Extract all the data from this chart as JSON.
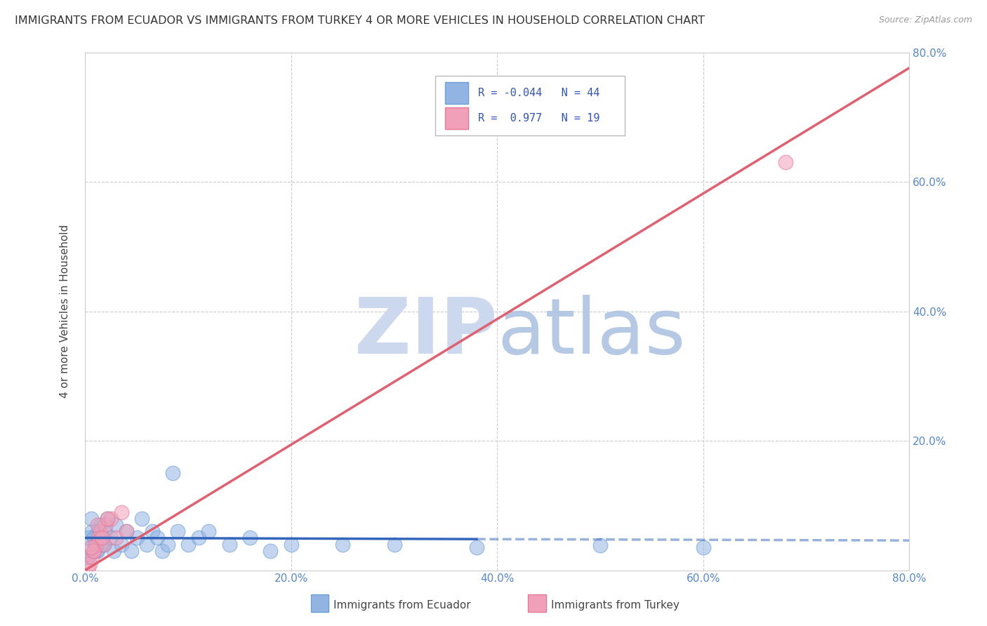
{
  "title": "IMMIGRANTS FROM ECUADOR VS IMMIGRANTS FROM TURKEY 4 OR MORE VEHICLES IN HOUSEHOLD CORRELATION CHART",
  "source": "Source: ZipAtlas.com",
  "ylabel": "4 or more Vehicles in Household",
  "legend_labels": [
    "Immigrants from Ecuador",
    "Immigrants from Turkey"
  ],
  "ecuador_R": -0.044,
  "ecuador_N": 44,
  "turkey_R": 0.977,
  "turkey_N": 19,
  "xlim": [
    0.0,
    0.8
  ],
  "ylim": [
    0.0,
    0.8
  ],
  "xticks": [
    0.0,
    0.2,
    0.4,
    0.6,
    0.8
  ],
  "yticks": [
    0.2,
    0.4,
    0.6,
    0.8
  ],
  "ecuador_color": "#92b4e3",
  "turkey_color": "#f0a0b8",
  "ecuador_edge_color": "#6a9fd8",
  "turkey_edge_color": "#e87898",
  "ecuador_line_color": "#3366bb",
  "turkey_line_color": "#e06070",
  "watermark_zip_color": "#ccd8ee",
  "watermark_atlas_color": "#aac0e0",
  "ecuador_x": [
    0.005,
    0.008,
    0.003,
    0.01,
    0.007,
    0.012,
    0.015,
    0.018,
    0.006,
    0.009,
    0.011,
    0.013,
    0.016,
    0.004,
    0.002,
    0.02,
    0.022,
    0.025,
    0.028,
    0.03,
    0.035,
    0.04,
    0.045,
    0.05,
    0.055,
    0.06,
    0.065,
    0.07,
    0.075,
    0.08,
    0.085,
    0.09,
    0.1,
    0.11,
    0.12,
    0.14,
    0.16,
    0.18,
    0.2,
    0.25,
    0.3,
    0.38,
    0.5,
    0.6
  ],
  "ecuador_y": [
    0.03,
    0.05,
    0.02,
    0.04,
    0.06,
    0.03,
    0.07,
    0.04,
    0.08,
    0.05,
    0.03,
    0.06,
    0.04,
    0.05,
    0.02,
    0.06,
    0.08,
    0.05,
    0.03,
    0.07,
    0.04,
    0.06,
    0.03,
    0.05,
    0.08,
    0.04,
    0.06,
    0.05,
    0.03,
    0.04,
    0.15,
    0.06,
    0.04,
    0.05,
    0.06,
    0.04,
    0.05,
    0.03,
    0.04,
    0.04,
    0.04,
    0.035,
    0.038,
    0.035
  ],
  "turkey_x": [
    0.003,
    0.005,
    0.007,
    0.009,
    0.011,
    0.013,
    0.015,
    0.018,
    0.02,
    0.025,
    0.03,
    0.035,
    0.04,
    0.008,
    0.012,
    0.016,
    0.022,
    0.006,
    0.68
  ],
  "turkey_y": [
    0.005,
    0.01,
    0.02,
    0.03,
    0.04,
    0.05,
    0.06,
    0.04,
    0.07,
    0.08,
    0.05,
    0.09,
    0.06,
    0.03,
    0.07,
    0.05,
    0.08,
    0.035,
    0.63
  ],
  "ec_line_solid_end": 0.38,
  "ec_line_dash_end": 0.8
}
